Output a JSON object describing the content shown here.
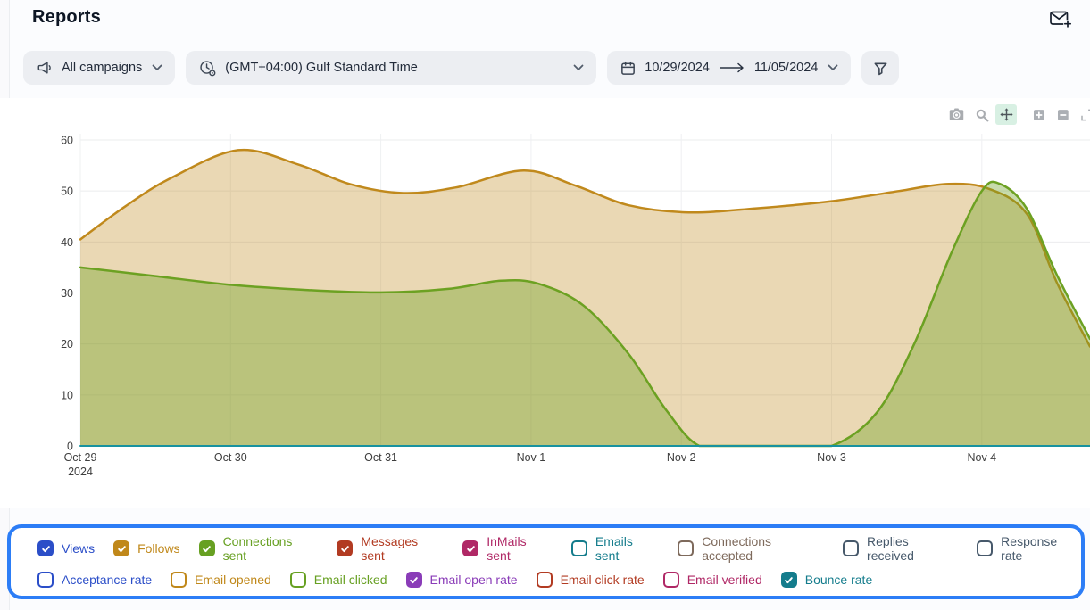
{
  "header": {
    "title": "Reports"
  },
  "filters": {
    "campaigns_label": "All campaigns",
    "timezone_label": "(GMT+04:00) Gulf Standard Time",
    "date_start": "10/29/2024",
    "date_end": "11/05/2024"
  },
  "toolbar": {
    "icons": [
      "camera-icon",
      "zoom-icon",
      "pan-icon",
      "zoom-in-icon",
      "zoom-out-icon",
      "autoscale-icon"
    ],
    "active_icon": "pan-icon",
    "active_bg": "#D8F0E3"
  },
  "chart_data": {
    "type": "area",
    "title": "",
    "xlabel": "",
    "ylabel": "",
    "grid": true,
    "legend_position": "bottom",
    "y_axis": {
      "min": 0,
      "max": 60,
      "step": 10
    },
    "x_axis": {
      "ticks": [
        {
          "label": "Oct 29",
          "sub": "2024",
          "day": 0
        },
        {
          "label": "Oct 30",
          "day": 1
        },
        {
          "label": "Oct 31",
          "day": 2
        },
        {
          "label": "Nov 1",
          "day": 3
        },
        {
          "label": "Nov 2",
          "day": 4
        },
        {
          "label": "Nov 3",
          "day": 5
        },
        {
          "label": "Nov 4",
          "day": 6
        }
      ]
    },
    "series": [
      {
        "name": "Follows",
        "line_color": "#C0891C",
        "fill": "rgba(192,137,28,0.33)",
        "width": 2.5,
        "points": [
          [
            0,
            40.5
          ],
          [
            0.3,
            47
          ],
          [
            0.6,
            52.5
          ],
          [
            1.05,
            58
          ],
          [
            1.45,
            55.2
          ],
          [
            1.8,
            51.3
          ],
          [
            2.15,
            49.6
          ],
          [
            2.5,
            50.7
          ],
          [
            2.95,
            54
          ],
          [
            3.3,
            51
          ],
          [
            3.65,
            47.2
          ],
          [
            4.05,
            45.8
          ],
          [
            4.5,
            46.6
          ],
          [
            5.0,
            48
          ],
          [
            5.45,
            50
          ],
          [
            5.78,
            51.4
          ],
          [
            6.05,
            50.4
          ],
          [
            6.3,
            45.5
          ],
          [
            6.5,
            32
          ],
          [
            6.72,
            19.5
          ]
        ]
      },
      {
        "name": "Connections sent",
        "line_color": "#6CA122",
        "fill": "rgba(108,161,34,0.38)",
        "width": 2.5,
        "points": [
          [
            0,
            35
          ],
          [
            0.5,
            33.3
          ],
          [
            1.0,
            31.6
          ],
          [
            1.5,
            30.6
          ],
          [
            2.0,
            30.1
          ],
          [
            2.45,
            30.8
          ],
          [
            2.8,
            32.4
          ],
          [
            3.05,
            31.8
          ],
          [
            3.35,
            27.5
          ],
          [
            3.65,
            18
          ],
          [
            3.9,
            7
          ],
          [
            4.12,
            0
          ],
          [
            4.4,
            0
          ],
          [
            4.7,
            0
          ],
          [
            5.0,
            0
          ],
          [
            5.3,
            6.5
          ],
          [
            5.55,
            20
          ],
          [
            5.8,
            38
          ],
          [
            6.0,
            50
          ],
          [
            6.12,
            51.4
          ],
          [
            6.3,
            46.5
          ],
          [
            6.5,
            33.5
          ],
          [
            6.72,
            21
          ]
        ]
      },
      {
        "name": "Bounce rate",
        "line_color": "#18929F",
        "width": 2,
        "points": [
          [
            0,
            0
          ],
          [
            6.72,
            0
          ]
        ]
      }
    ]
  },
  "legend": {
    "border_color": "#2C7DF6",
    "rows": [
      [
        {
          "label": "Views",
          "color": "#2B4EC8",
          "checked": true
        },
        {
          "label": "Follows",
          "color": "#C0881A",
          "checked": true
        },
        {
          "label": "Connections sent",
          "color": "#67A022",
          "checked": true
        },
        {
          "label": "Messages sent",
          "color": "#B23B22",
          "checked": true
        },
        {
          "label": "InMails sent",
          "color": "#B02866",
          "checked": true
        },
        {
          "label": "Emails sent",
          "color": "#147C8C",
          "checked": false
        },
        {
          "label": "Connections accepted",
          "color": "#7E6A5C",
          "checked": false
        },
        {
          "label": "Replies received",
          "color": "#47596B",
          "checked": false
        },
        {
          "label": "Response rate",
          "color": "#47596B",
          "checked": false
        }
      ],
      [
        {
          "label": "Acceptance rate",
          "color": "#2B4EC8",
          "checked": false
        },
        {
          "label": "Email opened",
          "color": "#C0881A",
          "checked": false
        },
        {
          "label": "Email clicked",
          "color": "#67A022",
          "checked": false
        },
        {
          "label": "Email open rate",
          "color": "#8A3CB8",
          "checked": true
        },
        {
          "label": "Email click rate",
          "color": "#B23B22",
          "checked": false
        },
        {
          "label": "Email verified",
          "color": "#B02866",
          "checked": false
        },
        {
          "label": "Bounce rate",
          "color": "#147C8C",
          "checked": true
        }
      ]
    ]
  }
}
